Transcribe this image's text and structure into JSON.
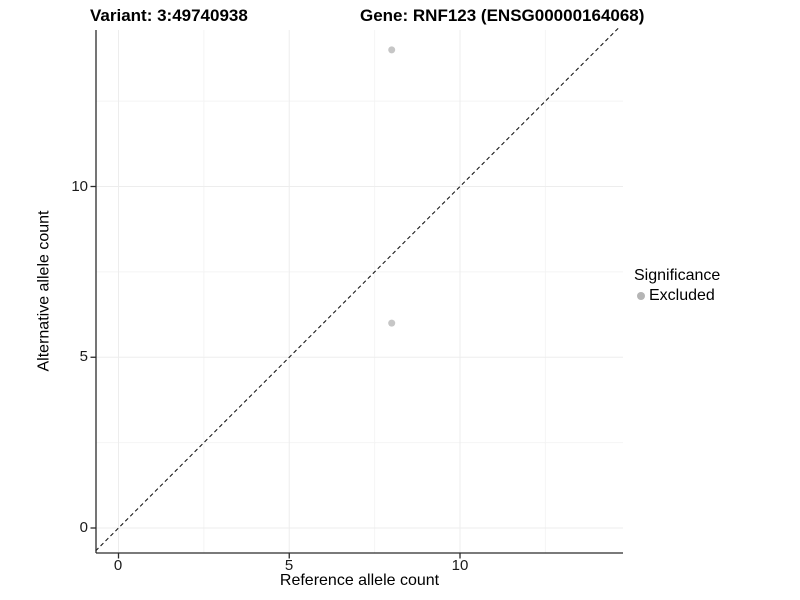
{
  "figure": {
    "title_variant": "Variant: 3:49740938",
    "title_gene": "Gene: RNF123 (ENSG00000164068)"
  },
  "chart_data": {
    "type": "scatter",
    "title": "Variant: 3:49740938   Gene: RNF123 (ENSG00000164068)",
    "xlabel": "Reference allele count",
    "ylabel": "Alternative allele count",
    "xlim": [
      -0.7,
      14.8
    ],
    "ylim": [
      -0.7,
      14.6
    ],
    "x_ticks": [
      0,
      5,
      10
    ],
    "y_ticks": [
      0,
      5,
      10
    ],
    "minor_ticks": [
      2.5,
      7.5,
      12.5
    ],
    "grid": true,
    "series": [
      {
        "name": "Excluded",
        "points": [
          {
            "x": 8,
            "y": 14
          },
          {
            "x": 8,
            "y": 6
          }
        ]
      }
    ],
    "identity_line": {
      "style": "dashed",
      "from": [
        -0.67,
        -0.67
      ],
      "to": [
        14.65,
        14.65
      ]
    },
    "legend": {
      "position": "right",
      "title": "Significance",
      "items": [
        {
          "label": "Excluded",
          "color": "#b5b5b5"
        }
      ]
    },
    "colors": {
      "point": "#c6c6c6",
      "identity_line": "#1a1a1a",
      "axis": "#2b2b2b",
      "grid_major": "#ededed",
      "grid_minor": "#f4f4f4",
      "tick_label": "#1a1a1a"
    }
  }
}
